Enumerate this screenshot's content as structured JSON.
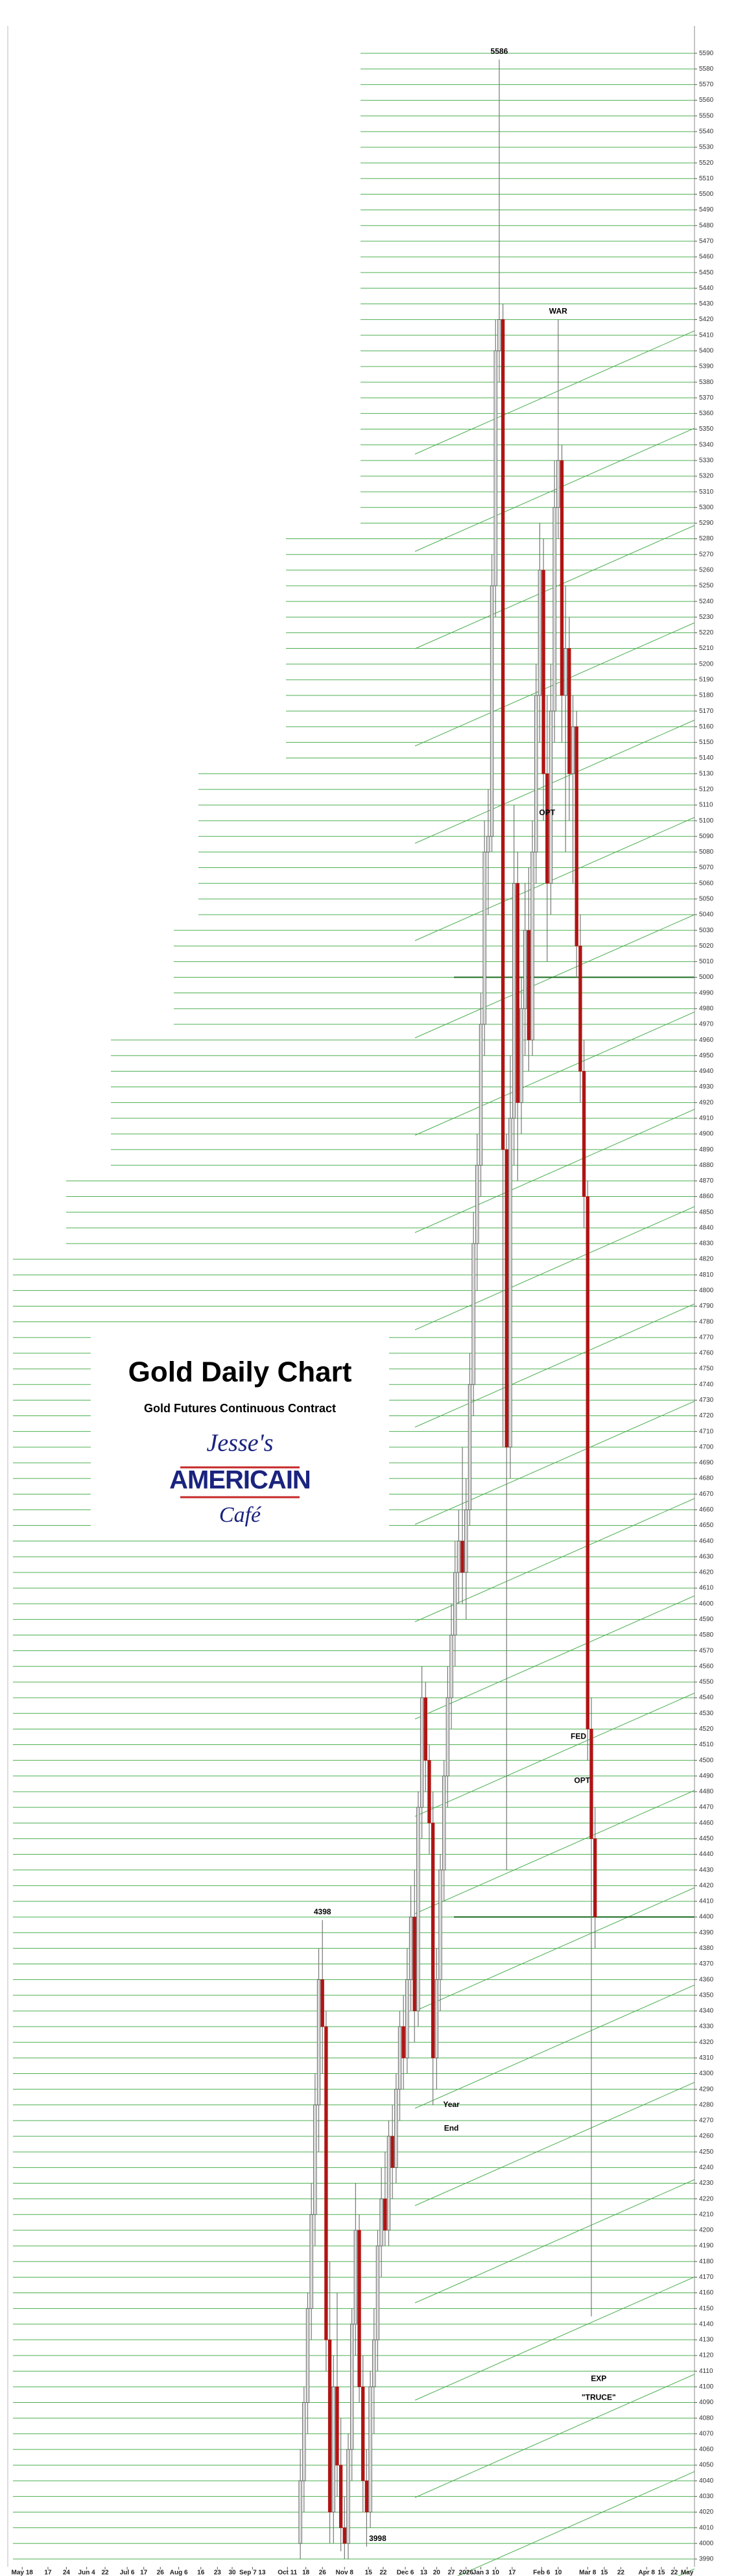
{
  "chart_data": {
    "type": "candlestick",
    "title": "Gold Daily Chart",
    "subtitle": "Gold Futures Continuous Contract",
    "logo": {
      "top": "Jesse's",
      "middle": "AMERICAIN",
      "bottom": "Café"
    },
    "up_color": "#d9d9d9",
    "down_color": "#b01414",
    "grid": true,
    "grid_color": "#4caf50",
    "reference_color": "#1b6e20",
    "reference_lines": [
      5000,
      4400
    ],
    "xlim": [
      0,
      370
    ],
    "ylim": [
      3985,
      5600
    ],
    "yticks": [
      3990,
      4000,
      4010,
      4020,
      4030,
      4040,
      4050,
      4060,
      4070,
      4080,
      4090,
      4100,
      4110,
      4120,
      4130,
      4140,
      4150,
      4160,
      4170,
      4180,
      4190,
      4200,
      4210,
      4220,
      4230,
      4240,
      4250,
      4260,
      4270,
      4280,
      4290,
      4300,
      4310,
      4320,
      4330,
      4340,
      4350,
      4360,
      4370,
      4380,
      4390,
      4400,
      4410,
      4420,
      4430,
      4440,
      4450,
      4460,
      4470,
      4480,
      4490,
      4500,
      4510,
      4520,
      4530,
      4540,
      4550,
      4560,
      4570,
      4580,
      4590,
      4600,
      4610,
      4620,
      4630,
      4640,
      4650,
      4660,
      4670,
      4680,
      4690,
      4700,
      4710,
      4720,
      4730,
      4740,
      4750,
      4760,
      4770,
      4780,
      4790,
      4800,
      4810,
      4820,
      4830,
      4840,
      4850,
      4860,
      4870,
      4880,
      4890,
      4900,
      4910,
      4920,
      4930,
      4940,
      4950,
      4960,
      4970,
      4980,
      4990,
      5000,
      5010,
      5020,
      5030,
      5040,
      5050,
      5060,
      5070,
      5080,
      5090,
      5100,
      5110,
      5120,
      5130,
      5140,
      5150,
      5160,
      5170,
      5180,
      5190,
      5200,
      5210,
      5220,
      5230,
      5240,
      5250,
      5260,
      5270,
      5280,
      5290,
      5300,
      5310,
      5320,
      5330,
      5340,
      5350,
      5360,
      5370,
      5380,
      5390,
      5400,
      5410,
      5420,
      5430,
      5440,
      5450,
      5460,
      5470,
      5480,
      5490,
      5500,
      5510,
      5520,
      5530,
      5540,
      5550,
      5560,
      5570,
      5580,
      5590
    ],
    "xticks": [
      {
        "value": 5,
        "label": "May 18"
      },
      {
        "value": 19,
        "label": "17"
      },
      {
        "value": 29,
        "label": "24"
      },
      {
        "value": 40,
        "label": "Jun 4"
      },
      {
        "value": 50,
        "label": "22"
      },
      {
        "value": 62,
        "label": "Jul 6"
      },
      {
        "value": 71,
        "label": "17"
      },
      {
        "value": 80,
        "label": "26"
      },
      {
        "value": 90,
        "label": "Aug 6"
      },
      {
        "value": 102,
        "label": "16"
      },
      {
        "value": 111,
        "label": "23"
      },
      {
        "value": 119,
        "label": "30"
      },
      {
        "value": 130,
        "label": "Sep 7 13"
      },
      {
        "value": 149,
        "label": "Oct 11"
      },
      {
        "value": 159,
        "label": "18"
      },
      {
        "value": 168,
        "label": "26"
      },
      {
        "value": 180,
        "label": "Nov 8"
      },
      {
        "value": 193,
        "label": "15"
      },
      {
        "value": 201,
        "label": "22"
      },
      {
        "value": 213,
        "label": "Dec 6"
      },
      {
        "value": 223,
        "label": "13"
      },
      {
        "value": 230,
        "label": "20"
      },
      {
        "value": 238,
        "label": "27"
      },
      {
        "value": 246,
        "label": "2026"
      },
      {
        "value": 254,
        "label": "Jan 3"
      },
      {
        "value": 262,
        "label": "10"
      },
      {
        "value": 271,
        "label": "17"
      },
      {
        "value": 287,
        "label": "Feb 6"
      },
      {
        "value": 296,
        "label": "10"
      },
      {
        "value": 312,
        "label": "Mar 8"
      },
      {
        "value": 321,
        "label": "15"
      },
      {
        "value": 330,
        "label": "22"
      },
      {
        "value": 344,
        "label": "Apr 8"
      },
      {
        "value": 352,
        "label": "15"
      },
      {
        "value": 359,
        "label": "22"
      },
      {
        "value": 366,
        "label": "May"
      }
    ],
    "x": [
      156,
      158,
      160,
      162,
      164,
      166,
      168,
      170,
      172,
      174,
      176,
      178,
      180,
      182,
      184,
      186,
      188,
      190,
      192,
      194,
      196,
      198,
      200,
      202,
      204,
      206,
      208,
      210,
      212,
      214,
      216,
      218,
      220,
      222,
      224,
      226,
      228,
      230,
      232,
      234,
      236,
      238,
      240,
      242,
      244,
      246,
      248,
      250,
      252,
      254,
      256,
      258,
      260,
      262,
      264,
      266,
      268,
      270,
      272,
      274,
      276,
      278,
      280,
      282,
      284,
      286,
      288,
      290,
      292,
      294,
      296,
      298,
      300,
      302,
      304,
      306,
      308,
      310,
      312,
      314,
      316
    ],
    "open": [
      4000,
      4040,
      4090,
      4150,
      4210,
      4280,
      4360,
      4330,
      4130,
      4020,
      4100,
      4050,
      4010,
      4000,
      4060,
      4140,
      4200,
      4100,
      4040,
      4020,
      4100,
      4130,
      4190,
      4220,
      4200,
      4260,
      4240,
      4290,
      4330,
      4310,
      4360,
      4400,
      4340,
      4470,
      4540,
      4500,
      4460,
      4310,
      4360,
      4430,
      4490,
      4540,
      4580,
      4620,
      4640,
      4620,
      4660,
      4740,
      4830,
      4880,
      4970,
      5080,
      5090,
      5250,
      5400,
      5420,
      4890,
      4700,
      4910,
      5060,
      4920,
      4980,
      5030,
      4960,
      5080,
      5180,
      5260,
      5130,
      5060,
      5170,
      5300,
      5330,
      5180,
      5210,
      5130,
      5160,
      5020,
      4940,
      4860,
      4520,
      4450
    ],
    "high": [
      4060,
      4100,
      4160,
      4230,
      4300,
      4380,
      4398,
      4340,
      4180,
      4120,
      4160,
      4080,
      4030,
      4070,
      4150,
      4230,
      4210,
      4120,
      4060,
      4110,
      4150,
      4200,
      4240,
      4250,
      4270,
      4280,
      4300,
      4340,
      4350,
      4380,
      4420,
      4430,
      4480,
      4560,
      4550,
      4510,
      4480,
      4380,
      4440,
      4500,
      4560,
      4600,
      4640,
      4660,
      4700,
      4680,
      4760,
      4850,
      4900,
      4990,
      5100,
      5120,
      5270,
      5420,
      5586,
      5430,
      4900,
      4950,
      5110,
      5080,
      5000,
      5060,
      5070,
      5100,
      5200,
      5290,
      5280,
      5180,
      5200,
      5330,
      5420,
      5340,
      5250,
      5230,
      5180,
      5170,
      5040,
      4960,
      4870,
      4540,
      4470
    ],
    "low": [
      3990,
      4020,
      4070,
      4130,
      4190,
      4250,
      4300,
      4110,
      4000,
      4000,
      4030,
      3995,
      3990,
      3990,
      4040,
      4120,
      4090,
      4020,
      3998,
      4010,
      4070,
      4110,
      4170,
      4190,
      4190,
      4220,
      4230,
      4270,
      4290,
      4300,
      4340,
      4320,
      4330,
      4450,
      4480,
      4440,
      4280,
      4290,
      4340,
      4410,
      4470,
      4520,
      4560,
      4600,
      4600,
      4590,
      4650,
      4720,
      4800,
      4860,
      4950,
      5040,
      5080,
      5230,
      5380,
      4700,
      4430,
      4680,
      4880,
      4870,
      4900,
      4950,
      4940,
      4950,
      5060,
      5150,
      5100,
      5010,
      5040,
      5150,
      5280,
      5150,
      5080,
      5100,
      5060,
      5000,
      4920,
      4840,
      4500,
      4145,
      4380
    ],
    "close": [
      4040,
      4090,
      4150,
      4210,
      4280,
      4360,
      4330,
      4130,
      4020,
      4100,
      4050,
      4010,
      4000,
      4060,
      4140,
      4200,
      4100,
      4040,
      4020,
      4100,
      4130,
      4190,
      4220,
      4200,
      4260,
      4240,
      4290,
      4330,
      4310,
      4360,
      4400,
      4340,
      4470,
      4540,
      4500,
      4460,
      4310,
      4360,
      4430,
      4490,
      4540,
      4580,
      4620,
      4640,
      4620,
      4660,
      4740,
      4830,
      4880,
      4970,
      5080,
      5090,
      5250,
      5400,
      5420,
      4890,
      4700,
      4910,
      5060,
      4920,
      4980,
      5030,
      4960,
      5080,
      5180,
      5260,
      5130,
      5060,
      5170,
      5300,
      5330,
      5180,
      5210,
      5130,
      5160,
      5020,
      4940,
      4860,
      4520,
      4450,
      4400
    ],
    "annotations": [
      {
        "text": "5586",
        "x": 264,
        "y": 5586
      },
      {
        "text": "WAR",
        "x": 296,
        "y": 5420
      },
      {
        "text": "OPT",
        "x": 290,
        "y": 5100
      },
      {
        "text": "4398",
        "x": 168,
        "y": 4398
      },
      {
        "text": "Year",
        "x": 238,
        "y": 4275
      },
      {
        "text": "End",
        "x": 238,
        "y": 4260
      },
      {
        "text": "FED",
        "x": 307,
        "y": 4510
      },
      {
        "text": "OPT",
        "x": 309,
        "y": 4482
      },
      {
        "text": "EXP",
        "x": 318,
        "y": 4100
      },
      {
        "text": "\"TRUCE\"",
        "x": 318,
        "y": 4088
      },
      {
        "text": "3998",
        "x": 198,
        "y": 3998
      }
    ]
  }
}
